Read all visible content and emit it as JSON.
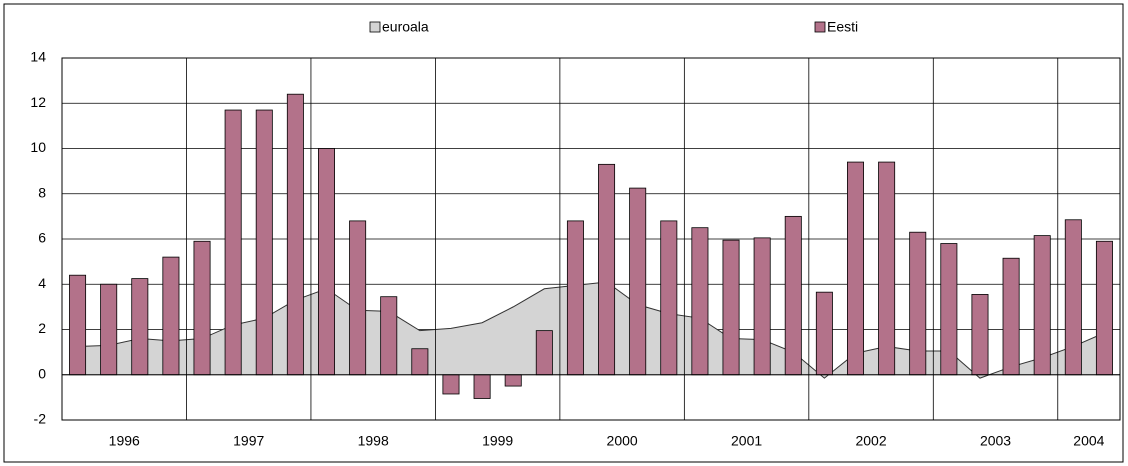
{
  "chart_data": {
    "type": "bar_area",
    "categories": [
      "1996",
      null,
      null,
      null,
      "1997",
      null,
      null,
      null,
      "1998",
      null,
      null,
      null,
      "1999",
      null,
      null,
      null,
      "2000",
      null,
      null,
      null,
      "2001",
      null,
      null,
      null,
      "2002",
      null,
      null,
      null,
      "2003",
      null,
      null,
      null,
      "2004",
      null
    ],
    "series": [
      {
        "name": "euroala",
        "type": "area",
        "color": "#d4d4d4",
        "values": [
          1.25,
          1.3,
          1.6,
          1.5,
          1.6,
          2.2,
          2.5,
          3.3,
          3.8,
          2.85,
          2.8,
          1.95,
          2.05,
          2.3,
          3.0,
          3.8,
          3.95,
          4.1,
          3.1,
          2.7,
          2.5,
          1.6,
          1.55,
          1.0,
          -0.15,
          0.95,
          1.25,
          1.05,
          1.05,
          -0.15,
          0.35,
          0.75,
          1.25,
          1.85
        ]
      },
      {
        "name": "Eesti",
        "type": "bar",
        "color": "#b3728a",
        "values": [
          4.4,
          4.0,
          4.25,
          5.2,
          5.9,
          11.7,
          11.7,
          12.4,
          10.0,
          6.8,
          3.45,
          1.15,
          -0.85,
          -1.05,
          -0.5,
          1.95,
          6.8,
          9.3,
          8.25,
          6.8,
          6.5,
          5.95,
          6.05,
          7.0,
          3.65,
          9.4,
          9.4,
          6.3,
          5.8,
          3.55,
          5.15,
          6.15,
          6.85,
          5.9
        ]
      }
    ],
    "ylim": [
      -2,
      14
    ],
    "yticks": [
      -2,
      0,
      2,
      4,
      6,
      8,
      10,
      12,
      14
    ],
    "grid": true,
    "legend": "top"
  }
}
